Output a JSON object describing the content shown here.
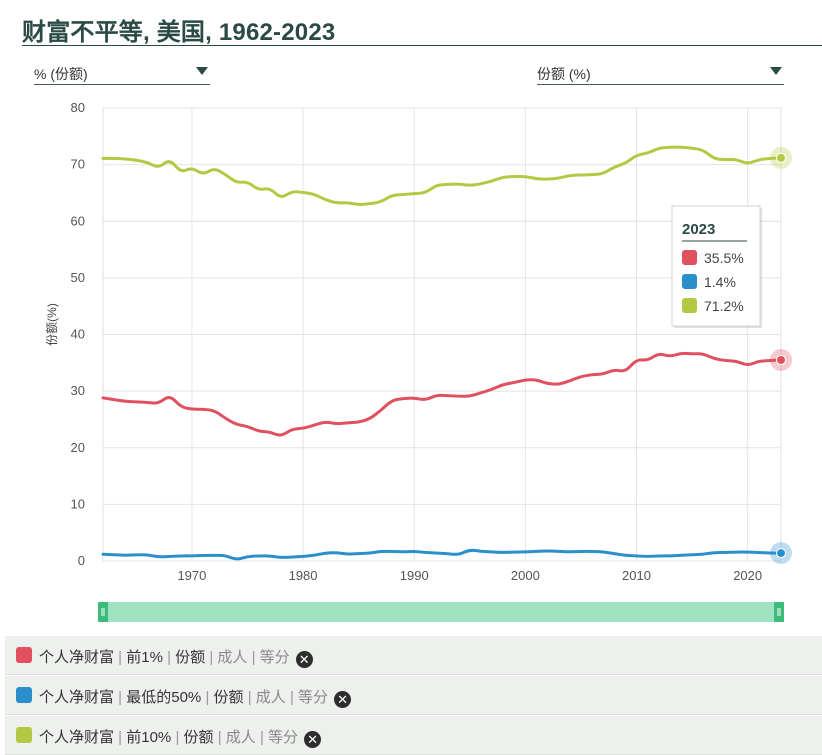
{
  "title": "财富不平等, 美国, 1962-2023",
  "dropdown_left": "% (份额)",
  "dropdown_right": "份额 (%)",
  "tooltip": {
    "year": "2023",
    "rows": [
      {
        "value": "35.5%",
        "color": "#e0505e"
      },
      {
        "value": "1.4%",
        "color": "#2b8fcc"
      },
      {
        "value": "71.2%",
        "color": "#b3c943"
      }
    ]
  },
  "legend": [
    {
      "color": "#e0505e",
      "parts": [
        "个人净财富",
        "前1%",
        "份额",
        "成人",
        "等分"
      ]
    },
    {
      "color": "#2b8fcc",
      "parts": [
        "个人净财富",
        "最低的50%",
        "份额",
        "成人",
        "等分"
      ]
    },
    {
      "color": "#b3c943",
      "parts": [
        "个人净财富",
        "前10%",
        "份额",
        "成人",
        "等分"
      ]
    }
  ],
  "chart_data": {
    "type": "line",
    "title": "财富不平等, 美国, 1962-2023",
    "xlabel": "",
    "ylabel": "份额(%)",
    "xlim": [
      1962,
      2023
    ],
    "ylim": [
      0,
      80
    ],
    "xticks": [
      1970,
      1980,
      1990,
      2000,
      2010,
      2020
    ],
    "yticks": [
      0,
      10,
      20,
      30,
      40,
      50,
      60,
      70,
      80
    ],
    "grid": true,
    "series": [
      {
        "color": "#e0505e",
        "x": [
          1962,
          1963,
          1964,
          1965,
          1966,
          1967,
          1968,
          1969,
          1970,
          1971,
          1972,
          1973,
          1974,
          1975,
          1976,
          1977,
          1978,
          1979,
          1980,
          1981,
          1982,
          1983,
          1984,
          1985,
          1986,
          1987,
          1988,
          1989,
          1990,
          1991,
          1992,
          1993,
          1994,
          1995,
          1996,
          1997,
          1998,
          1999,
          2000,
          2001,
          2002,
          2003,
          2004,
          2005,
          2006,
          2007,
          2008,
          2009,
          2010,
          2011,
          2012,
          2013,
          2014,
          2015,
          2016,
          2017,
          2018,
          2019,
          2020,
          2021,
          2022,
          2023
        ],
        "y": [
          28.8,
          28.5,
          28.2,
          28.1,
          28.0,
          27.8,
          29.3,
          27.2,
          26.8,
          26.8,
          26.6,
          25.2,
          24.1,
          23.8,
          22.9,
          22.8,
          22.0,
          23.3,
          23.4,
          24.0,
          24.6,
          24.2,
          24.4,
          24.5,
          25.1,
          26.6,
          28.4,
          28.7,
          28.8,
          28.4,
          29.3,
          29.2,
          29.1,
          29.1,
          29.7,
          30.3,
          31.2,
          31.5,
          32.0,
          32.0,
          31.3,
          31.2,
          31.8,
          32.6,
          32.9,
          33.0,
          33.8,
          33.4,
          35.6,
          35.4,
          36.7,
          36.1,
          36.7,
          36.6,
          36.6,
          35.7,
          35.4,
          35.3,
          34.5,
          35.3,
          35.4,
          35.5
        ]
      },
      {
        "color": "#2b8fcc",
        "x": [
          1962,
          1963,
          1964,
          1965,
          1966,
          1967,
          1968,
          1969,
          1970,
          1971,
          1972,
          1973,
          1974,
          1975,
          1976,
          1977,
          1978,
          1979,
          1980,
          1981,
          1982,
          1983,
          1984,
          1985,
          1986,
          1987,
          1988,
          1989,
          1990,
          1991,
          1992,
          1993,
          1994,
          1995,
          1996,
          1997,
          1998,
          1999,
          2000,
          2001,
          2002,
          2003,
          2004,
          2005,
          2006,
          2007,
          2008,
          2009,
          2010,
          2011,
          2012,
          2013,
          2014,
          2015,
          2016,
          2017,
          2018,
          2019,
          2020,
          2021,
          2022,
          2023
        ],
        "y": [
          1.2,
          1.1,
          1.0,
          1.1,
          1.1,
          0.7,
          0.8,
          0.9,
          0.9,
          1.0,
          1.0,
          1.0,
          0.2,
          0.8,
          0.9,
          0.9,
          0.6,
          0.7,
          0.8,
          1.0,
          1.4,
          1.5,
          1.2,
          1.3,
          1.4,
          1.7,
          1.7,
          1.6,
          1.7,
          1.5,
          1.4,
          1.3,
          1.1,
          2.0,
          1.7,
          1.6,
          1.5,
          1.6,
          1.6,
          1.7,
          1.8,
          1.7,
          1.6,
          1.7,
          1.7,
          1.6,
          1.3,
          1.0,
          0.9,
          0.8,
          0.9,
          0.9,
          1.0,
          1.1,
          1.2,
          1.5,
          1.5,
          1.6,
          1.6,
          1.5,
          1.4,
          1.4
        ]
      },
      {
        "color": "#b3c943",
        "x": [
          1962,
          1963,
          1964,
          1965,
          1966,
          1967,
          1968,
          1969,
          1970,
          1971,
          1972,
          1973,
          1974,
          1975,
          1976,
          1977,
          1978,
          1979,
          1980,
          1981,
          1982,
          1983,
          1984,
          1985,
          1986,
          1987,
          1988,
          1989,
          1990,
          1991,
          1992,
          1993,
          1994,
          1995,
          1996,
          1997,
          1998,
          1999,
          2000,
          2001,
          2002,
          2003,
          2004,
          2005,
          2006,
          2007,
          2008,
          2009,
          2010,
          2011,
          2012,
          2013,
          2014,
          2015,
          2016,
          2017,
          2018,
          2019,
          2020,
          2021,
          2022,
          2023
        ],
        "y": [
          71.1,
          71.1,
          71.0,
          70.8,
          70.4,
          69.4,
          71.0,
          68.6,
          69.5,
          68.2,
          69.4,
          68.3,
          66.8,
          67.0,
          65.5,
          65.9,
          64.0,
          65.3,
          65.1,
          64.8,
          63.8,
          63.2,
          63.3,
          62.9,
          63.1,
          63.4,
          64.6,
          64.7,
          64.9,
          65.0,
          66.4,
          66.5,
          66.6,
          66.3,
          66.6,
          67.1,
          67.8,
          67.9,
          67.9,
          67.5,
          67.4,
          67.6,
          68.1,
          68.2,
          68.2,
          68.4,
          69.6,
          70.2,
          71.7,
          72.0,
          72.9,
          73.1,
          73.1,
          72.9,
          72.6,
          71.0,
          70.9,
          70.9,
          70.1,
          70.9,
          71.1,
          71.2
        ]
      }
    ]
  }
}
